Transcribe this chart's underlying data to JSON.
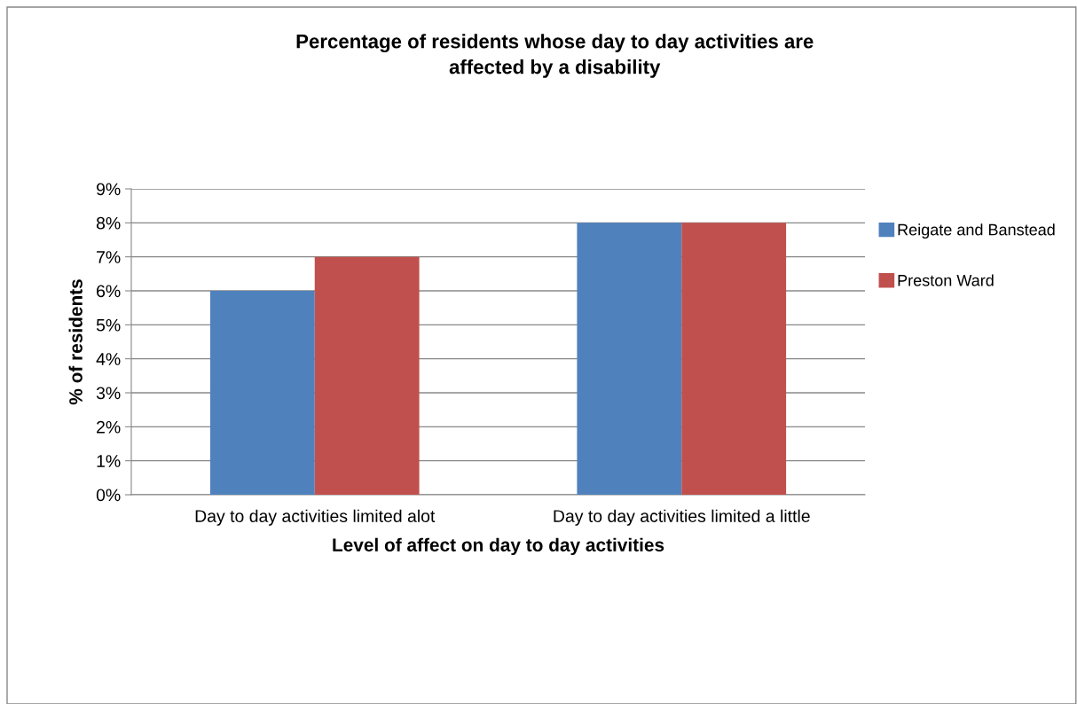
{
  "chart_data": {
    "type": "bar",
    "title": "Percentage of residents whose day to day activities are\naffected by a disability",
    "xlabel": "Level of affect on day to day activities",
    "ylabel": "% of residents",
    "categories": [
      "Day to day activities limited alot",
      "Day to day activities limited a little"
    ],
    "series": [
      {
        "name": "Reigate and Banstead",
        "color": "#4f81bd",
        "values": [
          6,
          8
        ]
      },
      {
        "name": "Preston Ward",
        "color": "#c0504d",
        "values": [
          7,
          8
        ]
      }
    ],
    "ylim": [
      0,
      9
    ],
    "yticks": [
      {
        "value": 0,
        "label": "0%"
      },
      {
        "value": 1,
        "label": "1%"
      },
      {
        "value": 2,
        "label": "2%"
      },
      {
        "value": 3,
        "label": "3%"
      },
      {
        "value": 4,
        "label": "4%"
      },
      {
        "value": 5,
        "label": "5%"
      },
      {
        "value": 6,
        "label": "6%"
      },
      {
        "value": 7,
        "label": "7%"
      },
      {
        "value": 8,
        "label": "8%"
      },
      {
        "value": 9,
        "label": "9%"
      }
    ],
    "grid": "y",
    "legend": "right"
  }
}
